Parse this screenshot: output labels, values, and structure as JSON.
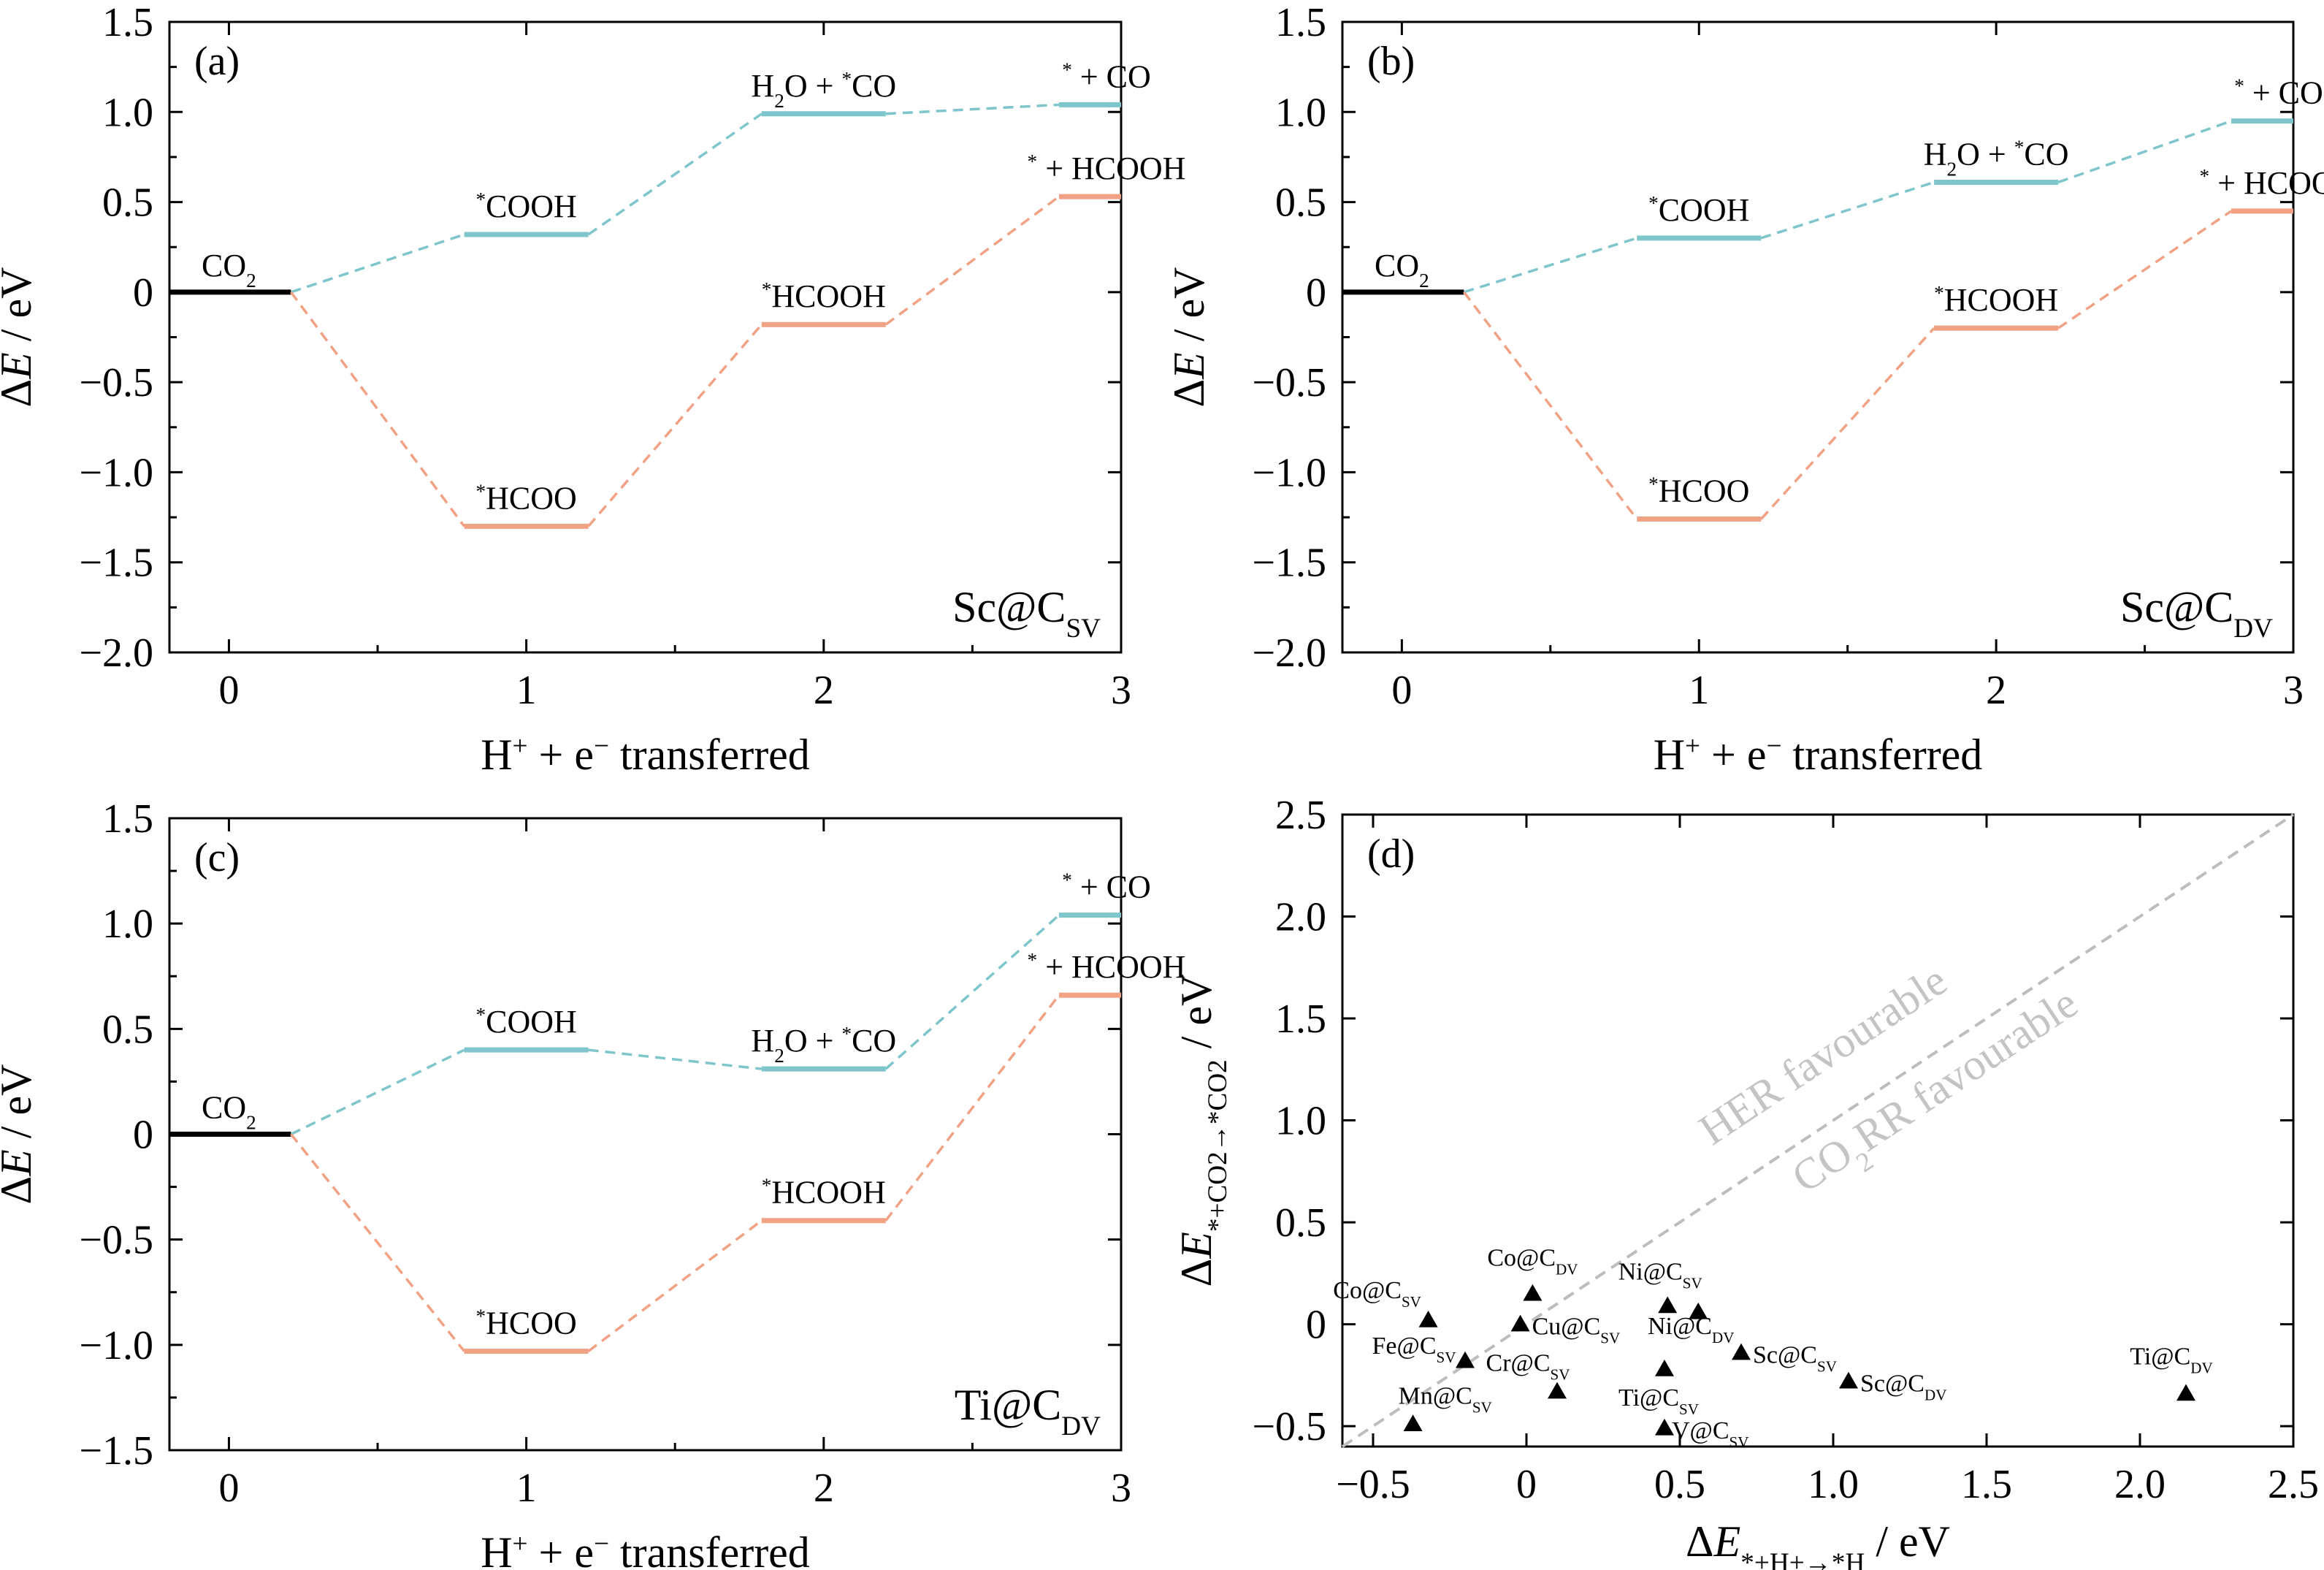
{
  "chart_data": [
    {
      "type": "line",
      "panel_label": "(a)",
      "system": "Sc@C",
      "system_sub": "SV",
      "xlabel": {
        "main": "H",
        "sup": "+",
        "rest": " + e",
        "sup2": "−",
        "tail": "  transferred"
      },
      "ylabel": "ΔE / eV",
      "xlim": [
        -0.2,
        3
      ],
      "ylim": [
        -2.0,
        1.5
      ],
      "xticks": [
        "0",
        "1",
        "2",
        "3"
      ],
      "yticks": [
        "−2.0",
        "−1.5",
        "−1.0",
        "−0.5",
        "0",
        "0.5",
        "1.0",
        "1.5"
      ],
      "co2": {
        "label": "CO",
        "sub": "2",
        "x": 0,
        "y": 0
      },
      "series": [
        {
          "color": "#7ec6cc",
          "states": [
            {
              "x": 1,
              "y": 0.32,
              "label": "COOH",
              "pre": ""
            },
            {
              "x": 2,
              "y": 0.99,
              "label": "CO",
              "pre": "H2O + "
            },
            {
              "x": 3,
              "y": 1.04,
              "label": " + CO",
              "pre": ""
            }
          ]
        },
        {
          "color": "#f2a284",
          "states": [
            {
              "x": 1,
              "y": -1.3,
              "label": "HCOO",
              "pre": ""
            },
            {
              "x": 2,
              "y": -0.18,
              "label": "HCOOH",
              "pre": ""
            },
            {
              "x": 3,
              "y": 0.53,
              "label": " + HCOOH",
              "pre": ""
            }
          ]
        }
      ]
    },
    {
      "type": "line",
      "panel_label": "(b)",
      "system": "Sc@C",
      "system_sub": "DV",
      "xlabel": {
        "main": "H",
        "sup": "+",
        "rest": " + e",
        "sup2": "−",
        "tail": "  transferred"
      },
      "ylabel": "ΔE / eV",
      "xlim": [
        -0.2,
        3
      ],
      "ylim": [
        -2.0,
        1.5
      ],
      "xticks": [
        "0",
        "1",
        "2",
        "3"
      ],
      "yticks": [
        "−2.0",
        "−1.5",
        "−1.0",
        "−0.5",
        "0",
        "0.5",
        "1.0",
        "1.5"
      ],
      "co2": {
        "label": "CO",
        "sub": "2",
        "x": 0,
        "y": 0
      },
      "series": [
        {
          "color": "#7ec6cc",
          "states": [
            {
              "x": 1,
              "y": 0.3,
              "label": "COOH",
              "pre": ""
            },
            {
              "x": 2,
              "y": 0.61,
              "label": "CO",
              "pre": "H2O + "
            },
            {
              "x": 3,
              "y": 0.95,
              "label": " + CO",
              "pre": ""
            }
          ]
        },
        {
          "color": "#f2a284",
          "states": [
            {
              "x": 1,
              "y": -1.26,
              "label": "HCOO",
              "pre": ""
            },
            {
              "x": 2,
              "y": -0.2,
              "label": "HCOOH",
              "pre": ""
            },
            {
              "x": 3,
              "y": 0.45,
              "label": " + HCOOH",
              "pre": ""
            }
          ]
        }
      ]
    },
    {
      "type": "line",
      "panel_label": "(c)",
      "system": "Ti@C",
      "system_sub": "DV",
      "xlabel": {
        "main": "H",
        "sup": "+",
        "rest": " + e",
        "sup2": "−",
        "tail": "  transferred"
      },
      "ylabel": "ΔE / eV",
      "xlim": [
        -0.2,
        3
      ],
      "ylim": [
        -1.5,
        1.5
      ],
      "xticks": [
        "0",
        "1",
        "2",
        "3"
      ],
      "yticks": [
        "−1.5",
        "−1.0",
        "−0.5",
        "0",
        "0.5",
        "1.0",
        "1.5"
      ],
      "co2": {
        "label": "CO",
        "sub": "2",
        "x": 0,
        "y": 0
      },
      "series": [
        {
          "color": "#7ec6cc",
          "states": [
            {
              "x": 1,
              "y": 0.4,
              "label": "COOH",
              "pre": ""
            },
            {
              "x": 2,
              "y": 0.31,
              "label": "CO",
              "pre": "H2O + "
            },
            {
              "x": 3,
              "y": 1.04,
              "label": " + CO",
              "pre": ""
            }
          ]
        },
        {
          "color": "#f2a284",
          "states": [
            {
              "x": 1,
              "y": -1.03,
              "label": "HCOO",
              "pre": ""
            },
            {
              "x": 2,
              "y": -0.41,
              "label": "HCOOH",
              "pre": ""
            },
            {
              "x": 3,
              "y": 0.66,
              "label": " + HCOOH",
              "pre": ""
            }
          ]
        }
      ]
    },
    {
      "type": "scatter",
      "panel_label": "(d)",
      "xlabel": "ΔE*+H+→*H / eV",
      "ylabel": "ΔE*+CO2→*CO2 / eV",
      "xlim": [
        -0.6,
        2.5
      ],
      "ylim": [
        -0.6,
        2.5
      ],
      "xticks": [
        "−0.5",
        "0",
        "0.5",
        "1.0",
        "1.5",
        "2.0",
        "2.5"
      ],
      "yticks": [
        "−0.5",
        "0",
        "0.5",
        "1.0",
        "1.5",
        "2.0",
        "2.5"
      ],
      "region_labels": {
        "upper": "HER favourable",
        "lower": "CO2RR favourable"
      },
      "points": [
        {
          "metal": "Co",
          "site": "SV",
          "x": -0.32,
          "y": 0.02
        },
        {
          "metal": "Fe",
          "site": "SV",
          "x": -0.2,
          "y": -0.18
        },
        {
          "metal": "Mn",
          "site": "SV",
          "x": -0.37,
          "y": -0.49
        },
        {
          "metal": "Co",
          "site": "DV",
          "x": 0.02,
          "y": 0.15
        },
        {
          "metal": "Cu",
          "site": "SV",
          "x": -0.02,
          "y": 0.0
        },
        {
          "metal": "Cr",
          "site": "SV",
          "x": 0.1,
          "y": -0.33
        },
        {
          "metal": "Ni",
          "site": "SV",
          "x": 0.46,
          "y": 0.09
        },
        {
          "metal": "Ni",
          "site": "DV",
          "x": 0.56,
          "y": 0.06
        },
        {
          "metal": "Ti",
          "site": "SV",
          "x": 0.45,
          "y": -0.22
        },
        {
          "metal": "V",
          "site": "SV",
          "x": 0.45,
          "y": -0.51
        },
        {
          "metal": "Sc",
          "site": "SV",
          "x": 0.7,
          "y": -0.14
        },
        {
          "metal": "Sc",
          "site": "DV",
          "x": 1.05,
          "y": -0.28
        },
        {
          "metal": "Ti",
          "site": "DV",
          "x": 2.15,
          "y": -0.34
        }
      ]
    }
  ]
}
